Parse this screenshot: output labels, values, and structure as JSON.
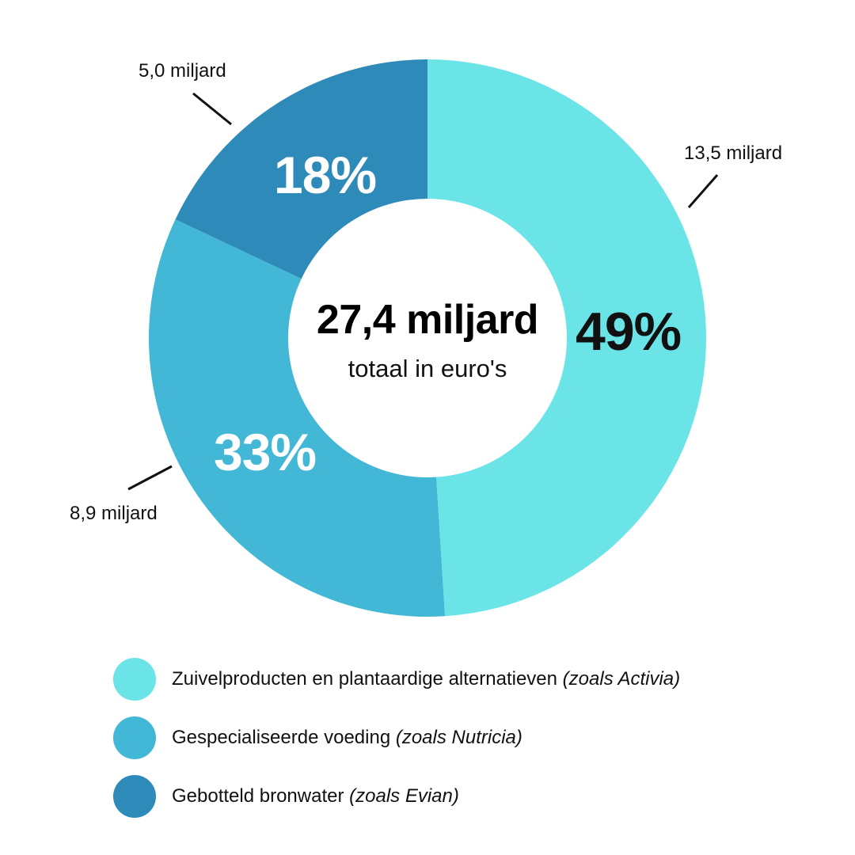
{
  "chart_data": {
    "type": "pie",
    "subtype": "donut",
    "title": "27,4 miljard",
    "subtitle": "totaal in euro's",
    "total": 27.4,
    "unit": "miljard euro",
    "categories": [
      "Zuivelproducten en plantaardige alternatieven (zoals Activia)",
      "Gespecialiseerde voeding (zoals Nutricia)",
      "Gebotteld bronwater (zoals Evian)"
    ],
    "values": [
      13.5,
      8.9,
      5.0
    ],
    "percentages": [
      49,
      33,
      18
    ],
    "legend_position": "bottom"
  },
  "segments": [
    {
      "pct_label": "49%",
      "value_label": "13,5 miljard",
      "color": "#6BE4E8",
      "pct_color": "#000000"
    },
    {
      "pct_label": "33%",
      "value_label": "8,9 miljard",
      "color": "#42B8D6",
      "pct_color": "#FFFFFF"
    },
    {
      "pct_label": "18%",
      "value_label": "5,0 miljard",
      "color": "#2D8AB9",
      "pct_color": "#FFFFFF"
    }
  ],
  "center": {
    "total_label": "27,4 miljard",
    "sub_label": "totaal in euro's"
  },
  "legend": [
    {
      "label": "Zuivelproducten en plantaardige alternatieven ",
      "example": "(zoals Activia)",
      "color": "#6BE4E8"
    },
    {
      "label": "Gespecialiseerde voeding ",
      "example": "(zoals Nutricia)",
      "color": "#42B8D6"
    },
    {
      "label": "Gebotteld bronwater ",
      "example": "(zoals Evian)",
      "color": "#2D8AB9"
    }
  ]
}
